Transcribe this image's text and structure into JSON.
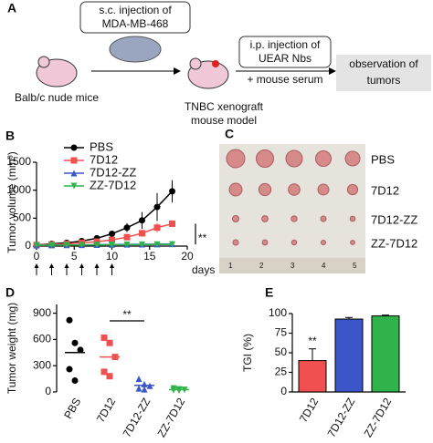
{
  "panel_labels": [
    "A",
    "B",
    "C",
    "D",
    "E"
  ],
  "diagram": {
    "step1": [
      "s.c. injection of",
      "MDA-MB-468"
    ],
    "mice": "Balb/c nude mice",
    "step2": [
      "i.p. injection of",
      "UEAR Nbs",
      "+ mouse serum"
    ],
    "model": [
      "TNBC xenograft",
      "mouse model"
    ],
    "result": [
      "observation of",
      "tumors"
    ]
  },
  "photo": {
    "row_labels": [
      "PBS",
      "7D12",
      "7D12-ZZ",
      "ZZ-7D12"
    ],
    "ruler_labels": [
      "1",
      "2",
      "3",
      "4",
      "5"
    ]
  },
  "chart_data": [
    {
      "type": "line",
      "ylabel": "Tumor volume (mm³)",
      "xlabel": "days",
      "annotation": "**",
      "x": [
        0,
        2,
        4,
        6,
        8,
        10,
        12,
        14,
        16,
        18
      ],
      "injection_days": [
        0,
        2,
        4,
        6,
        8,
        10
      ],
      "xlim": [
        0,
        20
      ],
      "xticks": [
        0,
        5,
        10,
        15,
        20
      ],
      "ylim": [
        0,
        1500
      ],
      "yticks": [
        0,
        500,
        1000,
        1500
      ],
      "series": [
        {
          "name": "PBS",
          "color": "#000000",
          "marker": "circle",
          "values": [
            20,
            40,
            60,
            90,
            140,
            220,
            330,
            460,
            700,
            980
          ],
          "errors": [
            5,
            10,
            15,
            20,
            30,
            40,
            80,
            150,
            250,
            200
          ]
        },
        {
          "name": "7D12",
          "color": "#f0504f",
          "marker": "square",
          "values": [
            20,
            30,
            40,
            60,
            80,
            110,
            160,
            230,
            330,
            400
          ],
          "errors": [
            5,
            5,
            10,
            10,
            20,
            30,
            40,
            60,
            80,
            60
          ]
        },
        {
          "name": "7D12-ZZ",
          "color": "#3a56c8",
          "marker": "triangle",
          "values": [
            15,
            18,
            20,
            22,
            25,
            28,
            30,
            32,
            35,
            38
          ],
          "errors": [
            3,
            3,
            4,
            4,
            5,
            5,
            5,
            6,
            6,
            6
          ]
        },
        {
          "name": "ZZ-7D12",
          "color": "#2fb34a",
          "marker": "tridown",
          "values": [
            15,
            17,
            18,
            20,
            22,
            24,
            25,
            27,
            28,
            30
          ],
          "errors": [
            3,
            3,
            3,
            4,
            4,
            4,
            5,
            5,
            5,
            5
          ]
        }
      ]
    },
    {
      "type": "strip",
      "ylabel": "Tumor weight (mg)",
      "annotation": "**",
      "categories": [
        "PBS",
        "7D12",
        "7D12-ZZ",
        "ZZ-7D12"
      ],
      "colors": [
        "#000000",
        "#f0504f",
        "#3a56c8",
        "#2fb34a"
      ],
      "ylim": [
        0,
        1000
      ],
      "yticks": [
        0,
        300,
        600,
        900
      ],
      "values": [
        [
          820,
          560,
          480,
          260,
          130
        ],
        [
          620,
          560,
          400,
          230,
          180
        ],
        [
          150,
          90,
          70,
          40,
          30
        ],
        [
          40,
          30,
          25,
          20,
          15
        ]
      ],
      "means": [
        450,
        400,
        75,
        26
      ]
    },
    {
      "type": "bar",
      "ylabel": "TGI (%)",
      "annotation": "**",
      "categories": [
        "7D12",
        "7D12-ZZ",
        "ZZ-7D12"
      ],
      "colors": [
        "#f0504f",
        "#3a56c8",
        "#2fb34a"
      ],
      "values": [
        40,
        93,
        97
      ],
      "errors": [
        15,
        2,
        1
      ],
      "ylim": [
        0,
        100
      ],
      "yticks": [
        0,
        25,
        50,
        75,
        100
      ]
    }
  ]
}
